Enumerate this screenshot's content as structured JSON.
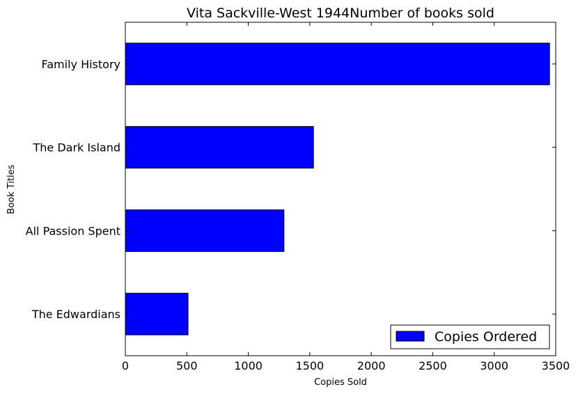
{
  "chart_data": {
    "type": "bar",
    "orientation": "horizontal",
    "title": "Vita Sackville-West 1944Number of books sold",
    "xlabel": "Copies Sold",
    "ylabel": "Book Titles",
    "categories": [
      "The Edwardians",
      "All Passion Spent",
      "The Dark Island",
      "Family History"
    ],
    "series": [
      {
        "name": "Copies Ordered",
        "values": [
          510,
          1290,
          1530,
          3450
        ],
        "color": "#0000ff"
      }
    ],
    "xlim": [
      0,
      3500
    ],
    "xticks": [
      "0",
      "500",
      "1000",
      "1500",
      "2000",
      "2500",
      "3000",
      "3500"
    ],
    "grid": false,
    "legend_position": "lower-right"
  }
}
